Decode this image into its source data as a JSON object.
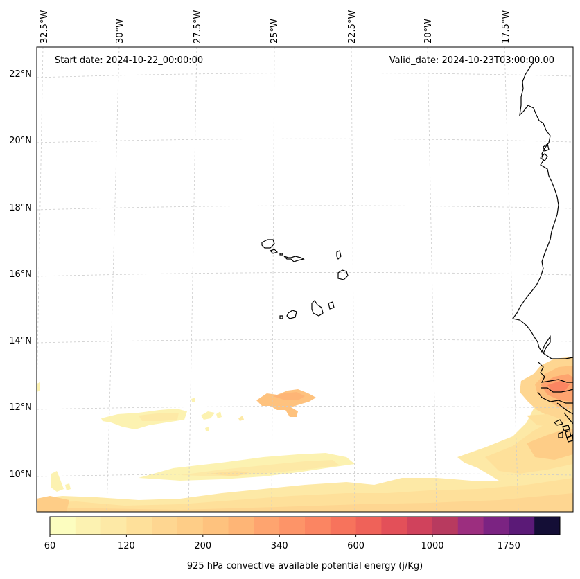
{
  "map": {
    "start_date": "Start date: 2024-10-22_00:00:00",
    "valid_date": "Valid_date: 2024-10-23T03:00:00.00",
    "lon_labels": [
      "32.5°W",
      "30°W",
      "27.5°W",
      "25°W",
      "22.5°W",
      "20°W",
      "17.5°W"
    ],
    "lat_labels": [
      "22°N",
      "20°N",
      "18°N",
      "16°N",
      "14°N",
      "12°N",
      "10°N"
    ],
    "field_name": "925 hPa convective available potential energy",
    "region": "Cabo Verde and West African coast"
  },
  "colorbar": {
    "label": "925 hPa convective available potential energy (j/Kg)",
    "tick_labels": [
      "60",
      "120",
      "200",
      "340",
      "600",
      "1000",
      "1750"
    ],
    "levels": [
      60,
      80,
      100,
      120,
      140,
      170,
      200,
      240,
      280,
      340,
      400,
      500,
      600,
      700,
      850,
      1000,
      1200,
      1450,
      1750,
      2100,
      2500
    ],
    "colors": [
      "#fcfdbf",
      "#fcf2b1",
      "#fde9a6",
      "#fee09a",
      "#fed691",
      "#fecd87",
      "#fec27e",
      "#feb576",
      "#fea46f",
      "#fd9468",
      "#fb8562",
      "#f7735c",
      "#ef6259",
      "#e35059",
      "#d0425c",
      "#b83a5f",
      "#9c2e7f",
      "#7b2382",
      "#5b1a77",
      "#140e36"
    ]
  }
}
